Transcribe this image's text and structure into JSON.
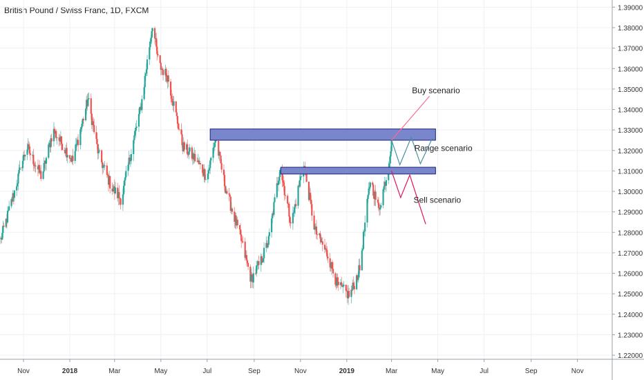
{
  "title": "British Pound / Swiss Franc, 1D, FXCM",
  "colors": {
    "up": "#26a69a",
    "down": "#ef5350",
    "wick": "#888888",
    "zone_fill": "#7986cb",
    "zone_border": "#1a237e",
    "buy_line": "#ff6b8a",
    "sell_line": "#e0115f",
    "range_line": "#4a90a4",
    "grid": "#eef0f3",
    "axis_text": "#333333"
  },
  "chart_data": {
    "type": "candlestick",
    "title": "British Pound / Swiss Franc, 1D, FXCM",
    "x_ticks": [
      "Nov",
      "2018",
      "Mar",
      "May",
      "Jul",
      "Sep",
      "Nov",
      "2019",
      "Mar",
      "May",
      "Jul",
      "Sep",
      "Nov"
    ],
    "y_ticks": [
      "1.39000",
      "1.38000",
      "1.37000",
      "1.36000",
      "1.35000",
      "1.34000",
      "1.33000",
      "1.32000",
      "1.31000",
      "1.30000",
      "1.29000",
      "1.28000",
      "1.27000",
      "1.26000",
      "1.25000",
      "1.24000",
      "1.23000",
      "1.22000"
    ],
    "ylim": [
      1.218,
      1.3935
    ],
    "xlim": [
      "2017-10-01",
      "2019-12-15"
    ],
    "grid": true,
    "price_path": [
      [
        "2017-10-01",
        1.275
      ],
      [
        "2017-10-20",
        1.3
      ],
      [
        "2017-11-05",
        1.322
      ],
      [
        "2017-11-25",
        1.307
      ],
      [
        "2017-12-10",
        1.33
      ],
      [
        "2018-01-05",
        1.315
      ],
      [
        "2018-01-25",
        1.345
      ],
      [
        "2018-02-08",
        1.318
      ],
      [
        "2018-02-25",
        1.302
      ],
      [
        "2018-03-10",
        1.296
      ],
      [
        "2018-03-22",
        1.318
      ],
      [
        "2018-04-05",
        1.342
      ],
      [
        "2018-04-20",
        1.382
      ],
      [
        "2018-04-28",
        1.362
      ],
      [
        "2018-05-10",
        1.356
      ],
      [
        "2018-05-30",
        1.322
      ],
      [
        "2018-06-15",
        1.316
      ],
      [
        "2018-07-01",
        1.307
      ],
      [
        "2018-07-12",
        1.326
      ],
      [
        "2018-07-25",
        1.302
      ],
      [
        "2018-08-15",
        1.276
      ],
      [
        "2018-08-28",
        1.257
      ],
      [
        "2018-09-10",
        1.266
      ],
      [
        "2018-09-20",
        1.276
      ],
      [
        "2018-10-05",
        1.312
      ],
      [
        "2018-10-20",
        1.284
      ],
      [
        "2018-11-05",
        1.314
      ],
      [
        "2018-11-20",
        1.281
      ],
      [
        "2018-12-08",
        1.268
      ],
      [
        "2018-12-20",
        1.254
      ],
      [
        "2019-01-05",
        1.249
      ],
      [
        "2019-01-18",
        1.262
      ],
      [
        "2019-02-01",
        1.306
      ],
      [
        "2019-02-12",
        1.291
      ],
      [
        "2019-02-24",
        1.31
      ],
      [
        "2019-03-01",
        1.325
      ]
    ],
    "zones": [
      {
        "from": "2018-07-05",
        "to": "2019-04-28",
        "low": 1.325,
        "high": 1.3305
      },
      {
        "from": "2018-10-06",
        "to": "2019-04-28",
        "low": 1.3085,
        "high": 1.3118
      }
    ],
    "scenarios": [
      {
        "label": "Buy scenario",
        "path": [
          [
            "2019-03-01",
            1.325
          ],
          [
            "2019-04-20",
            1.3465
          ]
        ],
        "label_at": [
          "2019-03-28",
          1.348
        ]
      },
      {
        "label": "Range scenario",
        "path": [
          [
            "2019-03-01",
            1.325
          ],
          [
            "2019-03-12",
            1.313
          ],
          [
            "2019-03-27",
            1.3265
          ],
          [
            "2019-04-08",
            1.3135
          ],
          [
            "2019-04-24",
            1.3262
          ]
        ],
        "label_at": [
          "2019-03-31",
          1.3198
        ]
      },
      {
        "label": "Sell scenario",
        "path": [
          [
            "2019-03-01",
            1.31
          ],
          [
            "2019-03-13",
            1.297
          ],
          [
            "2019-03-25",
            1.308
          ],
          [
            "2019-04-15",
            1.284
          ]
        ],
        "label_at": [
          "2019-03-30",
          1.2945
        ]
      }
    ]
  }
}
